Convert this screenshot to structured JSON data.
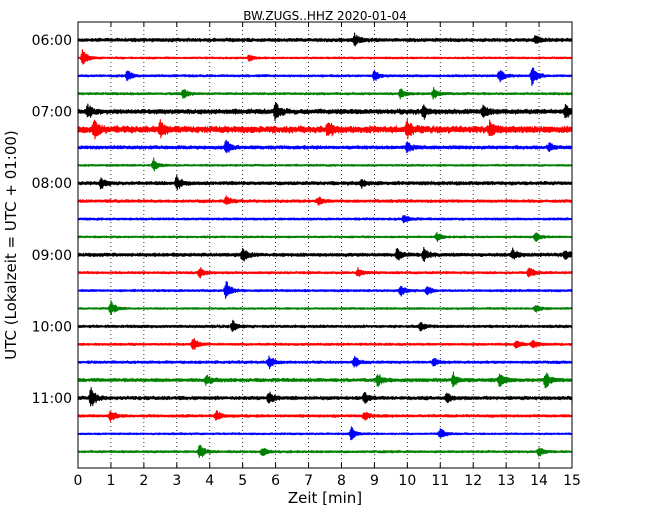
{
  "chart_data": {
    "type": "line",
    "title": "BW.ZUGS..HHZ 2020-01-04",
    "xlabel": "Zeit  [min]",
    "ylabel": "UTC (Lokalzeit = UTC + 01:00)",
    "xlim": [
      0,
      15
    ],
    "x_ticks": [
      0,
      1,
      2,
      3,
      4,
      5,
      6,
      7,
      8,
      9,
      10,
      11,
      12,
      13,
      14,
      15
    ],
    "grid": "vertical dotted",
    "y_ticks": [
      "06:00",
      "07:00",
      "08:00",
      "09:00",
      "10:00",
      "11:00"
    ],
    "line_colors": [
      "#000000",
      "#ff0000",
      "#0000ff",
      "#008000"
    ],
    "rows": [
      {
        "start": "06:00",
        "color": "#000000",
        "amplitude": 0.18,
        "events": [
          {
            "t": 8.4,
            "amp": 0.6
          },
          {
            "t": 13.9,
            "amp": 0.35
          }
        ]
      },
      {
        "start": "06:15",
        "color": "#ff0000",
        "amplitude": 0.1,
        "events": [
          {
            "t": 0.15,
            "amp": 0.9
          },
          {
            "t": 5.2,
            "amp": 0.3
          }
        ]
      },
      {
        "start": "06:30",
        "color": "#0000ff",
        "amplitude": 0.12,
        "events": [
          {
            "t": 1.5,
            "amp": 0.5
          },
          {
            "t": 9.0,
            "amp": 0.5
          },
          {
            "t": 12.8,
            "amp": 0.6
          },
          {
            "t": 13.8,
            "amp": 1.0
          }
        ]
      },
      {
        "start": "06:45",
        "color": "#008000",
        "amplitude": 0.12,
        "events": [
          {
            "t": 3.2,
            "amp": 0.5
          },
          {
            "t": 9.8,
            "amp": 0.5
          },
          {
            "t": 10.8,
            "amp": 0.5
          }
        ]
      },
      {
        "start": "07:00",
        "color": "#000000",
        "amplitude": 0.25,
        "events": [
          {
            "t": 0.3,
            "amp": 0.6
          },
          {
            "t": 6.0,
            "amp": 0.8
          },
          {
            "t": 10.5,
            "amp": 0.6
          },
          {
            "t": 12.3,
            "amp": 0.6
          },
          {
            "t": 14.8,
            "amp": 0.6
          }
        ]
      },
      {
        "start": "07:15",
        "color": "#ff0000",
        "amplitude": 0.35,
        "events": [
          {
            "t": 0.5,
            "amp": 0.7
          },
          {
            "t": 2.5,
            "amp": 0.7
          },
          {
            "t": 7.6,
            "amp": 0.7
          },
          {
            "t": 10.0,
            "amp": 0.7
          },
          {
            "t": 12.5,
            "amp": 0.6
          }
        ]
      },
      {
        "start": "07:30",
        "color": "#0000ff",
        "amplitude": 0.18,
        "events": [
          {
            "t": 4.5,
            "amp": 0.6
          },
          {
            "t": 10.0,
            "amp": 0.5
          },
          {
            "t": 14.3,
            "amp": 0.4
          }
        ]
      },
      {
        "start": "07:45",
        "color": "#008000",
        "amplitude": 0.1,
        "events": [
          {
            "t": 2.3,
            "amp": 0.6
          }
        ]
      },
      {
        "start": "08:00",
        "color": "#000000",
        "amplitude": 0.18,
        "events": [
          {
            "t": 0.7,
            "amp": 0.5
          },
          {
            "t": 3.0,
            "amp": 0.6
          },
          {
            "t": 8.6,
            "amp": 0.4
          }
        ]
      },
      {
        "start": "08:15",
        "color": "#ff0000",
        "amplitude": 0.15,
        "events": [
          {
            "t": 4.5,
            "amp": 0.4
          },
          {
            "t": 7.3,
            "amp": 0.4
          }
        ]
      },
      {
        "start": "08:30",
        "color": "#0000ff",
        "amplitude": 0.12,
        "events": [
          {
            "t": 9.9,
            "amp": 0.4
          }
        ]
      },
      {
        "start": "08:45",
        "color": "#008000",
        "amplitude": 0.1,
        "events": [
          {
            "t": 10.9,
            "amp": 0.4
          },
          {
            "t": 13.9,
            "amp": 0.4
          }
        ]
      },
      {
        "start": "09:00",
        "color": "#000000",
        "amplitude": 0.18,
        "events": [
          {
            "t": 5.0,
            "amp": 0.7
          },
          {
            "t": 9.7,
            "amp": 0.6
          },
          {
            "t": 10.5,
            "amp": 0.6
          },
          {
            "t": 13.2,
            "amp": 0.5
          },
          {
            "t": 14.8,
            "amp": 0.4
          }
        ]
      },
      {
        "start": "09:15",
        "color": "#ff0000",
        "amplitude": 0.12,
        "events": [
          {
            "t": 3.7,
            "amp": 0.5
          },
          {
            "t": 8.5,
            "amp": 0.4
          },
          {
            "t": 13.7,
            "amp": 0.6
          }
        ]
      },
      {
        "start": "09:30",
        "color": "#0000ff",
        "amplitude": 0.12,
        "events": [
          {
            "t": 4.5,
            "amp": 0.9
          },
          {
            "t": 9.8,
            "amp": 0.5
          },
          {
            "t": 10.6,
            "amp": 0.4
          }
        ]
      },
      {
        "start": "09:45",
        "color": "#008000",
        "amplitude": 0.1,
        "events": [
          {
            "t": 1.0,
            "amp": 0.7
          },
          {
            "t": 13.9,
            "amp": 0.4
          }
        ]
      },
      {
        "start": "10:00",
        "color": "#000000",
        "amplitude": 0.14,
        "events": [
          {
            "t": 4.7,
            "amp": 0.5
          },
          {
            "t": 10.4,
            "amp": 0.4
          }
        ]
      },
      {
        "start": "10:15",
        "color": "#ff0000",
        "amplitude": 0.12,
        "events": [
          {
            "t": 3.5,
            "amp": 0.6
          },
          {
            "t": 13.3,
            "amp": 0.4
          },
          {
            "t": 13.8,
            "amp": 0.4
          }
        ]
      },
      {
        "start": "10:30",
        "color": "#0000ff",
        "amplitude": 0.14,
        "events": [
          {
            "t": 5.8,
            "amp": 0.6
          },
          {
            "t": 8.4,
            "amp": 0.5
          },
          {
            "t": 10.8,
            "amp": 0.4
          }
        ]
      },
      {
        "start": "10:45",
        "color": "#008000",
        "amplitude": 0.18,
        "events": [
          {
            "t": 3.9,
            "amp": 0.5
          },
          {
            "t": 9.1,
            "amp": 0.6
          },
          {
            "t": 11.4,
            "amp": 0.6
          },
          {
            "t": 12.8,
            "amp": 0.7
          },
          {
            "t": 14.2,
            "amp": 0.7
          }
        ]
      },
      {
        "start": "11:00",
        "color": "#000000",
        "amplitude": 0.18,
        "events": [
          {
            "t": 0.4,
            "amp": 1.0
          },
          {
            "t": 5.8,
            "amp": 0.6
          },
          {
            "t": 8.7,
            "amp": 0.5
          },
          {
            "t": 11.2,
            "amp": 0.4
          }
        ]
      },
      {
        "start": "11:15",
        "color": "#ff0000",
        "amplitude": 0.14,
        "events": [
          {
            "t": 1.0,
            "amp": 0.5
          },
          {
            "t": 4.2,
            "amp": 0.5
          },
          {
            "t": 8.7,
            "amp": 0.4
          }
        ]
      },
      {
        "start": "11:30",
        "color": "#0000ff",
        "amplitude": 0.1,
        "events": [
          {
            "t": 8.3,
            "amp": 0.6
          },
          {
            "t": 11.0,
            "amp": 0.5
          }
        ]
      },
      {
        "start": "11:45",
        "color": "#008000",
        "amplitude": 0.12,
        "events": [
          {
            "t": 3.7,
            "amp": 0.7
          },
          {
            "t": 5.6,
            "amp": 0.4
          },
          {
            "t": 14.0,
            "amp": 0.4
          }
        ]
      }
    ]
  }
}
